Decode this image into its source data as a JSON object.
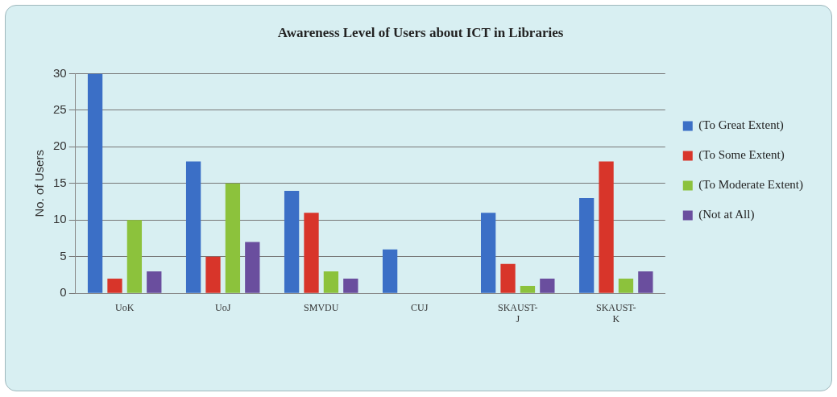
{
  "chart_data": {
    "type": "bar",
    "title": "Awareness Level of Users about ICT in Libraries",
    "ylabel": "No. of Users",
    "categories": [
      "UoK",
      "UoJ",
      "SMVDU",
      "CUJ",
      "SKAUST-J",
      "SKAUST-K"
    ],
    "series": [
      {
        "name": "(To Great Extent)",
        "color": "#3b6fc6",
        "values": [
          30,
          18,
          14,
          6,
          11,
          13
        ]
      },
      {
        "name": "(To Some Extent)",
        "color": "#d8352a",
        "values": [
          2,
          5,
          11,
          0,
          4,
          18
        ]
      },
      {
        "name": "(To Moderate Extent)",
        "color": "#8cc23c",
        "values": [
          10,
          15,
          3,
          0,
          1,
          2
        ]
      },
      {
        "name": "(Not at All)",
        "color": "#6a4e9e",
        "values": [
          3,
          7,
          2,
          0,
          2,
          3
        ]
      }
    ],
    "ylim": [
      0,
      30
    ],
    "yticks": [
      0,
      5,
      10,
      15,
      20,
      25,
      30
    ],
    "grid": "y",
    "legend": "right"
  }
}
